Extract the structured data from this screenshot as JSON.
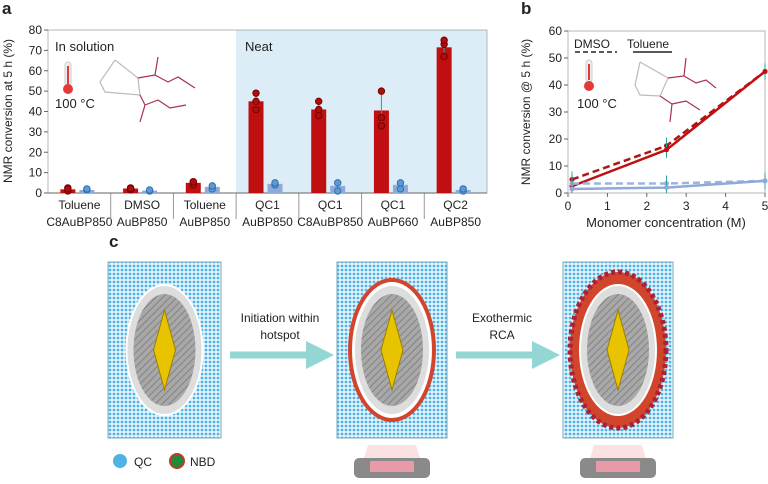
{
  "panel_labels": {
    "a": "a",
    "b": "b",
    "c": "c"
  },
  "colors": {
    "red": "#c00f10",
    "blue": "#8fa9d8",
    "neat_bg": "#dcedf7",
    "teal": "#2aa198",
    "qc": "#4fb3e3",
    "nbd_fill": "#1f8a3a",
    "nbd_ring": "#c0392b",
    "arrow": "#93d6d3",
    "gold": "#e8c300"
  },
  "chart_data": [
    {
      "type": "bar",
      "panel": "a",
      "ylabel": "NMR conversion at 5 h (%)",
      "ylim": [
        0,
        80
      ],
      "yticks": [
        0,
        10,
        20,
        30,
        40,
        50,
        60,
        70,
        80
      ],
      "categories": [
        {
          "line1": "Toluene",
          "line2": "C8AuBP850"
        },
        {
          "line1": "DMSO",
          "line2": "AuBP850"
        },
        {
          "line1": "Toluene",
          "line2": "AuBP850"
        },
        {
          "line1": "QC1",
          "line2": "AuBP850"
        },
        {
          "line1": "QC1",
          "line2": "C8AuBP850"
        },
        {
          "line1": "QC1",
          "line2": "AuBP660"
        },
        {
          "line1": "QC2",
          "line2": "AuBP850"
        }
      ],
      "series": [
        {
          "color": "#c00f10",
          "values": [
            1.8,
            2.2,
            5,
            45,
            41,
            40.5,
            71.5
          ],
          "points": [
            [
              1,
              2.5,
              2
            ],
            [
              1.5,
              2.5,
              2.2
            ],
            [
              4,
              5.5,
              5.5
            ],
            [
              41,
              45,
              49
            ],
            [
              38,
              41,
              45
            ],
            [
              33,
              37,
              50
            ],
            [
              67,
              73,
              75
            ]
          ]
        },
        {
          "color": "#8fa9d8",
          "values": [
            1.5,
            1.2,
            3,
            4.5,
            3.5,
            4,
            1.5
          ],
          "points": [
            [
              1.5,
              2
            ],
            [
              1,
              1.5
            ],
            [
              2,
              3.5
            ],
            [
              4,
              5
            ],
            [
              1,
              5
            ],
            [
              2,
              5
            ],
            [
              1,
              2
            ]
          ]
        }
      ],
      "regions": [
        {
          "label": "In solution"
        },
        {
          "label": "Neat"
        }
      ],
      "annotation": "100 °C"
    },
    {
      "type": "line",
      "panel": "b",
      "xlabel": "Monomer concentration (M)",
      "ylabel": "NMR conversion @ 5 h (%)",
      "xlim": [
        0,
        5
      ],
      "ylim": [
        0,
        60
      ],
      "xticks": [
        0,
        1,
        2,
        3,
        4,
        5
      ],
      "yticks": [
        0,
        10,
        20,
        30,
        40,
        50,
        60
      ],
      "legend": [
        {
          "name": "DMSO",
          "style": "dashed"
        },
        {
          "name": "Toluene",
          "style": "solid"
        }
      ],
      "annotation": "100 °C",
      "series": [
        {
          "solvent": "DMSO",
          "color": "#b01515",
          "style": "dashed",
          "x": [
            0.1,
            2.5,
            5
          ],
          "y": [
            5,
            17.5,
            45
          ]
        },
        {
          "solvent": "Toluene",
          "color": "#c00f10",
          "style": "solid",
          "x": [
            0.1,
            2.5,
            5
          ],
          "y": [
            2.5,
            16,
            45
          ]
        },
        {
          "solvent": "DMSO",
          "color": "#9db3dd",
          "style": "dashed",
          "x": [
            0.1,
            2.5,
            5
          ],
          "y": [
            3.5,
            3.5,
            4.5
          ]
        },
        {
          "solvent": "Toluene",
          "color": "#8fa9d8",
          "style": "solid",
          "x": [
            0.1,
            2.5,
            5
          ],
          "y": [
            1.5,
            2,
            4.5
          ]
        }
      ]
    }
  ],
  "panel_c": {
    "step1": [
      "Initiation within",
      "hotspot"
    ],
    "step2": [
      "Exothermic",
      "RCA"
    ],
    "legend": [
      {
        "label": "QC"
      },
      {
        "label": "NBD"
      }
    ]
  }
}
